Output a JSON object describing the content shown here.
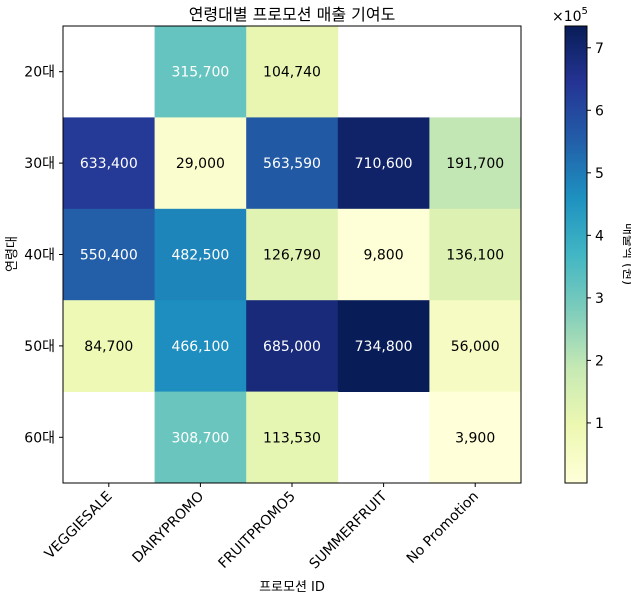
{
  "chart_data": {
    "type": "heatmap",
    "title": "연령대별 프로모션 매출 기여도",
    "xlabel": "프로모션 ID",
    "ylabel": "연령대",
    "x_categories": [
      "VEGGIESALE",
      "DAIRYPROMO",
      "FRUITPROMO5",
      "SUMMERFRUIT",
      "No Promotion"
    ],
    "y_categories": [
      "20대",
      "30대",
      "40대",
      "50대",
      "60대"
    ],
    "values": [
      [
        null,
        315700,
        104740,
        null,
        null
      ],
      [
        633400,
        29000,
        563590,
        710600,
        191700
      ],
      [
        550400,
        482500,
        126790,
        9800,
        136100
      ],
      [
        84700,
        466100,
        685000,
        734800,
        56000
      ],
      [
        null,
        308700,
        113530,
        null,
        3900
      ]
    ],
    "cell_labels": [
      [
        "",
        "315,700",
        "104,740",
        "",
        ""
      ],
      [
        "633,400",
        "29,000",
        "563,590",
        "710,600",
        "191,700"
      ],
      [
        "550,400",
        "482,500",
        "126,790",
        "9,800",
        "136,100"
      ],
      [
        "84,700",
        "466,100",
        "685,000",
        "734,800",
        "56,000"
      ],
      [
        "",
        "308,700",
        "113,530",
        "",
        "3,900"
      ]
    ],
    "colormap": "YlGnBu",
    "vmin": 3900,
    "vmax": 734800,
    "colorbar": {
      "label": "매출액 (원)",
      "multiplier": "×10",
      "exponent": "5",
      "ticks": [
        1,
        2,
        3,
        4,
        5,
        6,
        7
      ],
      "tick_labels": [
        "1",
        "2",
        "3",
        "4",
        "5",
        "6",
        "7"
      ]
    }
  }
}
